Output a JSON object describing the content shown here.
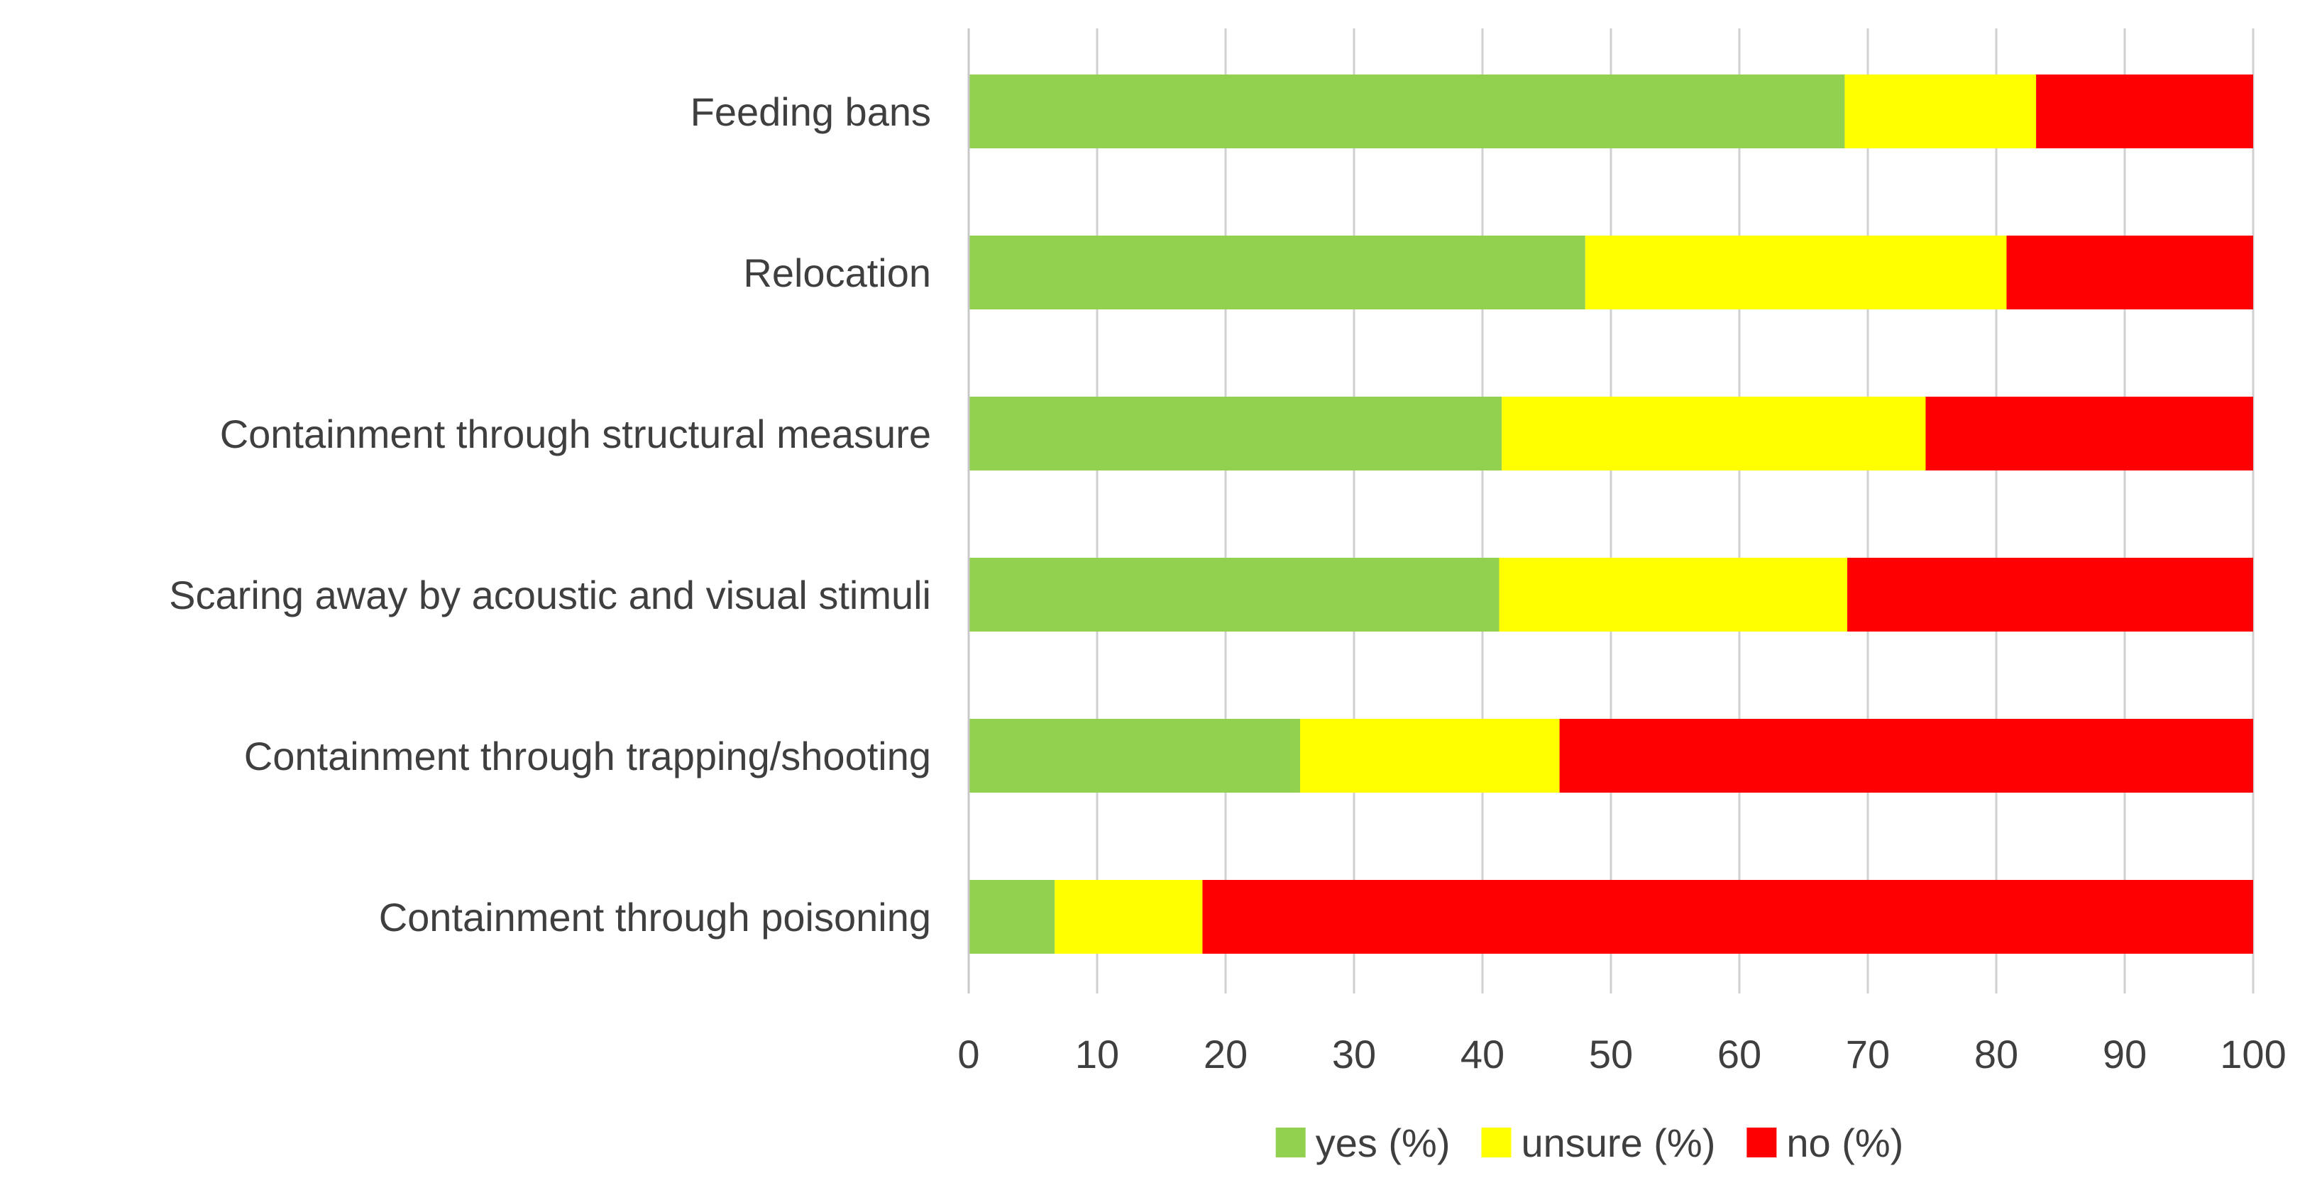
{
  "chart_data": {
    "type": "bar",
    "orientation": "horizontal",
    "stacked": true,
    "title": "",
    "xlabel": "",
    "ylabel": "",
    "xlim": [
      0,
      100
    ],
    "x_ticks": [
      0,
      10,
      20,
      30,
      40,
      50,
      60,
      70,
      80,
      90,
      100
    ],
    "grid": true,
    "legend_position": "bottom",
    "categories": [
      "Feeding bans",
      "Relocation",
      "Containment through structural measure",
      "Scaring away by acoustic and visual stimuli",
      "Containment through trapping/shooting",
      "Containment through poisoning"
    ],
    "series": [
      {
        "name": "yes (%)",
        "color": "#92d050",
        "values": [
          68.2,
          48.0,
          41.5,
          41.3,
          25.8,
          6.7
        ]
      },
      {
        "name": "unsure (%)",
        "color": "#ffff00",
        "values": [
          14.9,
          32.8,
          33.0,
          27.1,
          20.2,
          11.5
        ]
      },
      {
        "name": "no (%)",
        "color": "#ff0000",
        "values": [
          16.9,
          19.2,
          25.5,
          31.6,
          54.0,
          81.8
        ]
      }
    ]
  }
}
